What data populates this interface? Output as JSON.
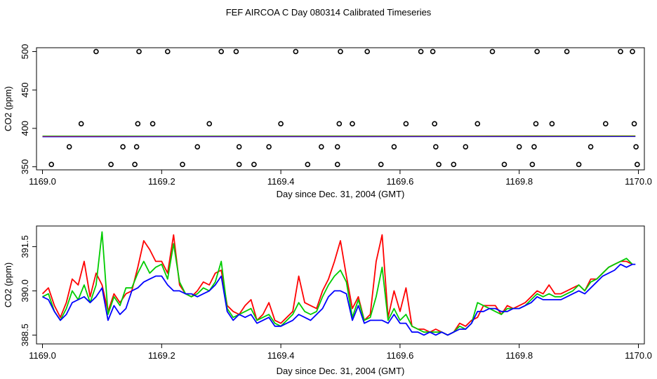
{
  "title": "FEF AIRCOA C  Day 080314  Calibrated Timeseries",
  "colors": {
    "red": "#ff0000",
    "green": "#00cc00",
    "blue": "#0000ff",
    "black": "#000000"
  },
  "chart_data": [
    {
      "type": "scatter",
      "xlabel": "Day since Dec. 31, 2004 (GMT)",
      "ylabel": "CO2 (ppm)",
      "xlim": [
        1168.99,
        1170.01
      ],
      "ylim": [
        346,
        505
      ],
      "xticks": [
        1169.0,
        1169.2,
        1169.4,
        1169.6,
        1169.8,
        1170.0
      ],
      "xtick_labels": [
        "1169.0",
        "1169.2",
        "1169.4",
        "1169.6",
        "1169.8",
        "1170.0"
      ],
      "yticks": [
        350,
        400,
        450,
        500
      ],
      "ytick_labels": [
        "350",
        "400",
        "450",
        "500"
      ],
      "points": [
        [
          1169.015,
          353
        ],
        [
          1169.045,
          376
        ],
        [
          1169.065,
          406
        ],
        [
          1169.09,
          500
        ],
        [
          1169.115,
          353
        ],
        [
          1169.135,
          376
        ],
        [
          1169.155,
          353
        ],
        [
          1169.158,
          376
        ],
        [
          1169.16,
          406
        ],
        [
          1169.162,
          500
        ],
        [
          1169.185,
          406
        ],
        [
          1169.21,
          500
        ],
        [
          1169.235,
          353
        ],
        [
          1169.26,
          376
        ],
        [
          1169.28,
          406
        ],
        [
          1169.3,
          500
        ],
        [
          1169.325,
          500
        ],
        [
          1169.33,
          376
        ],
        [
          1169.33,
          353
        ],
        [
          1169.355,
          353
        ],
        [
          1169.38,
          376
        ],
        [
          1169.4,
          406
        ],
        [
          1169.425,
          500
        ],
        [
          1169.445,
          353
        ],
        [
          1169.468,
          376
        ],
        [
          1169.495,
          376
        ],
        [
          1169.495,
          353
        ],
        [
          1169.498,
          406
        ],
        [
          1169.5,
          500
        ],
        [
          1169.52,
          406
        ],
        [
          1169.545,
          500
        ],
        [
          1169.568,
          353
        ],
        [
          1169.59,
          376
        ],
        [
          1169.61,
          406
        ],
        [
          1169.635,
          500
        ],
        [
          1169.655,
          500
        ],
        [
          1169.658,
          406
        ],
        [
          1169.66,
          376
        ],
        [
          1169.665,
          353
        ],
        [
          1169.69,
          353
        ],
        [
          1169.71,
          376
        ],
        [
          1169.73,
          406
        ],
        [
          1169.755,
          500
        ],
        [
          1169.775,
          353
        ],
        [
          1169.8,
          376
        ],
        [
          1169.822,
          353
        ],
        [
          1169.825,
          376
        ],
        [
          1169.828,
          406
        ],
        [
          1169.83,
          500
        ],
        [
          1169.855,
          406
        ],
        [
          1169.88,
          500
        ],
        [
          1169.9,
          353
        ],
        [
          1169.92,
          376
        ],
        [
          1169.945,
          406
        ],
        [
          1169.97,
          500
        ],
        [
          1169.99,
          500
        ],
        [
          1169.993,
          406
        ],
        [
          1169.996,
          376
        ],
        [
          1169.998,
          353
        ]
      ],
      "baseline": {
        "x": [
          1169.0,
          1169.995
        ],
        "y": [
          389.5,
          389.8
        ]
      }
    },
    {
      "type": "line",
      "xlabel": "Day since Dec. 31, 2004 (GMT)",
      "ylabel": "CO2 (ppm)",
      "xlim": [
        1168.99,
        1170.01
      ],
      "ylim": [
        388.2,
        392.2
      ],
      "xticks": [
        1169.0,
        1169.2,
        1169.4,
        1169.6,
        1169.8,
        1170.0
      ],
      "xtick_labels": [
        "1169.0",
        "1169.2",
        "1169.4",
        "1169.6",
        "1169.8",
        "1170.0"
      ],
      "yticks": [
        388.5,
        390.0,
        391.5
      ],
      "ytick_labels": [
        "388.5",
        "390.0",
        "391.5"
      ],
      "series": [
        {
          "name": "red",
          "color": "#ff0000",
          "x": [
            1169.0,
            1169.01,
            1169.02,
            1169.03,
            1169.04,
            1169.05,
            1169.06,
            1169.07,
            1169.08,
            1169.09,
            1169.1,
            1169.11,
            1169.12,
            1169.13,
            1169.14,
            1169.15,
            1169.16,
            1169.17,
            1169.18,
            1169.19,
            1169.2,
            1169.21,
            1169.22,
            1169.23,
            1169.24,
            1169.25,
            1169.26,
            1169.27,
            1169.28,
            1169.29,
            1169.3,
            1169.31,
            1169.32,
            1169.33,
            1169.34,
            1169.35,
            1169.36,
            1169.37,
            1169.38,
            1169.39,
            1169.4,
            1169.41,
            1169.42,
            1169.43,
            1169.44,
            1169.45,
            1169.46,
            1169.47,
            1169.48,
            1169.49,
            1169.5,
            1169.51,
            1169.52,
            1169.53,
            1169.54,
            1169.55,
            1169.56,
            1169.57,
            1169.58,
            1169.59,
            1169.6,
            1169.61,
            1169.62,
            1169.63,
            1169.64,
            1169.65,
            1169.66,
            1169.67,
            1169.68,
            1169.69,
            1169.7,
            1169.71,
            1169.72,
            1169.73,
            1169.74,
            1169.75,
            1169.76,
            1169.77,
            1169.78,
            1169.79,
            1169.8,
            1169.81,
            1169.82,
            1169.83,
            1169.84,
            1169.85,
            1169.86,
            1169.87,
            1169.88,
            1169.89,
            1169.9,
            1169.91,
            1169.92,
            1169.93,
            1169.94,
            1169.95,
            1169.96,
            1169.97,
            1169.98,
            1169.99
          ],
          "y": [
            389.9,
            390.1,
            389.5,
            389.1,
            389.6,
            390.4,
            390.2,
            391.0,
            389.8,
            390.6,
            390.2,
            389.3,
            389.9,
            389.6,
            389.9,
            390.0,
            390.8,
            391.7,
            391.4,
            391.0,
            391.0,
            390.6,
            391.9,
            390.2,
            389.9,
            389.8,
            390.0,
            390.3,
            390.2,
            390.6,
            390.7,
            389.5,
            389.3,
            389.2,
            389.5,
            389.7,
            389.0,
            389.2,
            389.6,
            389.0,
            388.9,
            389.1,
            389.3,
            390.5,
            389.6,
            389.5,
            389.4,
            390.0,
            390.4,
            391.0,
            391.7,
            390.5,
            389.4,
            389.8,
            389.0,
            389.2,
            391.0,
            391.9,
            389.1,
            390.0,
            389.3,
            390.1,
            388.8,
            388.7,
            388.7,
            388.6,
            388.7,
            388.6,
            388.5,
            388.6,
            388.9,
            388.8,
            389.0,
            389.1,
            389.5,
            389.5,
            389.5,
            389.2,
            389.5,
            389.4,
            389.5,
            389.6,
            389.8,
            390.0,
            389.9,
            390.2,
            389.9,
            389.9,
            390.0,
            390.1,
            390.2,
            390.0,
            390.4,
            390.4,
            390.6,
            390.8,
            390.9,
            391.0,
            391.0,
            390.9
          ]
        },
        {
          "name": "green",
          "color": "#00cc00",
          "x": [
            1169.0,
            1169.01,
            1169.02,
            1169.03,
            1169.04,
            1169.05,
            1169.06,
            1169.07,
            1169.08,
            1169.09,
            1169.1,
            1169.11,
            1169.12,
            1169.13,
            1169.14,
            1169.15,
            1169.16,
            1169.17,
            1169.18,
            1169.19,
            1169.2,
            1169.21,
            1169.22,
            1169.23,
            1169.24,
            1169.25,
            1169.26,
            1169.27,
            1169.28,
            1169.29,
            1169.3,
            1169.31,
            1169.32,
            1169.33,
            1169.34,
            1169.35,
            1169.36,
            1169.37,
            1169.38,
            1169.39,
            1169.4,
            1169.41,
            1169.42,
            1169.43,
            1169.44,
            1169.45,
            1169.46,
            1169.47,
            1169.48,
            1169.49,
            1169.5,
            1169.51,
            1169.52,
            1169.53,
            1169.54,
            1169.55,
            1169.56,
            1169.57,
            1169.58,
            1169.59,
            1169.6,
            1169.61,
            1169.62,
            1169.63,
            1169.64,
            1169.65,
            1169.66,
            1169.67,
            1169.68,
            1169.69,
            1169.7,
            1169.71,
            1169.72,
            1169.73,
            1169.74,
            1169.75,
            1169.76,
            1169.77,
            1169.78,
            1169.79,
            1169.8,
            1169.81,
            1169.82,
            1169.83,
            1169.84,
            1169.85,
            1169.86,
            1169.87,
            1169.88,
            1169.89,
            1169.9,
            1169.91,
            1169.92,
            1169.93,
            1169.94,
            1169.95,
            1169.96,
            1169.97,
            1169.98,
            1169.99
          ],
          "y": [
            389.8,
            389.9,
            389.3,
            389.0,
            389.4,
            390.0,
            389.7,
            390.2,
            389.6,
            390.2,
            392.0,
            389.2,
            389.8,
            389.5,
            390.1,
            390.1,
            390.6,
            391.0,
            390.6,
            390.8,
            390.9,
            390.4,
            391.6,
            390.3,
            389.9,
            389.8,
            389.9,
            390.1,
            390.0,
            390.3,
            391.0,
            389.4,
            389.1,
            389.2,
            389.3,
            389.4,
            389.0,
            389.1,
            389.2,
            388.9,
            388.8,
            389.0,
            389.2,
            389.6,
            389.3,
            389.2,
            389.3,
            389.8,
            390.2,
            390.5,
            390.7,
            390.3,
            389.1,
            389.7,
            389.0,
            389.1,
            389.8,
            390.8,
            389.0,
            389.4,
            389.0,
            389.2,
            388.8,
            388.7,
            388.6,
            388.6,
            388.6,
            388.6,
            388.5,
            388.6,
            388.8,
            388.7,
            388.9,
            389.6,
            389.5,
            389.4,
            389.3,
            389.2,
            389.4,
            389.4,
            389.4,
            389.5,
            389.7,
            389.9,
            389.8,
            389.9,
            389.8,
            389.8,
            389.9,
            390.0,
            390.2,
            390.0,
            390.3,
            390.4,
            390.6,
            390.8,
            390.9,
            391.0,
            391.1,
            390.9
          ]
        },
        {
          "name": "blue",
          "color": "#0000ff",
          "x": [
            1169.0,
            1169.01,
            1169.02,
            1169.03,
            1169.04,
            1169.05,
            1169.06,
            1169.07,
            1169.08,
            1169.09,
            1169.1,
            1169.11,
            1169.12,
            1169.13,
            1169.14,
            1169.15,
            1169.16,
            1169.17,
            1169.18,
            1169.19,
            1169.2,
            1169.21,
            1169.22,
            1169.23,
            1169.24,
            1169.25,
            1169.26,
            1169.27,
            1169.28,
            1169.29,
            1169.3,
            1169.31,
            1169.32,
            1169.33,
            1169.34,
            1169.35,
            1169.36,
            1169.37,
            1169.38,
            1169.39,
            1169.4,
            1169.41,
            1169.42,
            1169.43,
            1169.44,
            1169.45,
            1169.46,
            1169.47,
            1169.48,
            1169.49,
            1169.5,
            1169.51,
            1169.52,
            1169.53,
            1169.54,
            1169.55,
            1169.56,
            1169.57,
            1169.58,
            1169.59,
            1169.6,
            1169.61,
            1169.62,
            1169.63,
            1169.64,
            1169.65,
            1169.66,
            1169.67,
            1169.68,
            1169.69,
            1169.7,
            1169.71,
            1169.72,
            1169.73,
            1169.74,
            1169.75,
            1169.76,
            1169.77,
            1169.78,
            1169.79,
            1169.8,
            1169.81,
            1169.82,
            1169.83,
            1169.84,
            1169.85,
            1169.86,
            1169.87,
            1169.88,
            1169.89,
            1169.9,
            1169.91,
            1169.92,
            1169.93,
            1169.94,
            1169.95,
            1169.96,
            1169.97,
            1169.98,
            1169.99,
            1169.995
          ],
          "y": [
            389.8,
            389.7,
            389.3,
            389.0,
            389.2,
            389.6,
            389.7,
            389.8,
            389.6,
            389.8,
            390.1,
            389.0,
            389.5,
            389.2,
            389.4,
            390.0,
            390.1,
            390.3,
            390.4,
            390.5,
            390.5,
            390.2,
            390.0,
            390.0,
            389.9,
            389.9,
            389.8,
            389.9,
            390.0,
            390.2,
            390.5,
            389.3,
            389.0,
            389.2,
            389.1,
            389.2,
            388.9,
            389.0,
            389.1,
            388.8,
            388.8,
            388.9,
            389.0,
            389.2,
            389.1,
            389.0,
            389.2,
            389.4,
            389.8,
            390.0,
            390.0,
            389.9,
            389.0,
            389.5,
            388.9,
            389.0,
            389.0,
            389.0,
            388.9,
            389.2,
            388.9,
            388.9,
            388.6,
            388.6,
            388.5,
            388.6,
            388.5,
            388.6,
            388.5,
            388.6,
            388.7,
            388.7,
            388.9,
            389.3,
            389.3,
            389.4,
            389.4,
            389.3,
            389.3,
            389.4,
            389.4,
            389.5,
            389.6,
            389.8,
            389.7,
            389.7,
            389.7,
            389.7,
            389.8,
            389.9,
            390.0,
            389.9,
            390.1,
            390.3,
            390.5,
            390.6,
            390.7,
            390.9,
            390.8,
            390.9,
            390.9
          ]
        }
      ]
    }
  ]
}
